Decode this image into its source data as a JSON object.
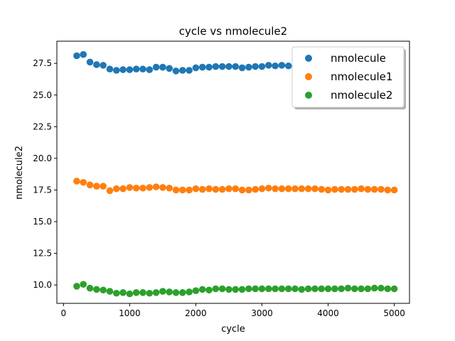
{
  "chart_data": {
    "type": "scatter",
    "title": "cycle vs nmolecule2",
    "xlabel": "cycle",
    "ylabel": "nmolecule2",
    "xlim": [
      -100,
      5230
    ],
    "ylim": [
      8.55,
      29.25
    ],
    "xticks": [
      "0",
      "1000",
      "2000",
      "3000",
      "4000",
      "5000"
    ],
    "xtick_values": [
      0,
      1000,
      2000,
      3000,
      4000,
      5000
    ],
    "yticks": [
      "10.0",
      "12.5",
      "15.0",
      "17.5",
      "20.0",
      "22.5",
      "25.0",
      "27.5"
    ],
    "ytick_values": [
      10.0,
      12.5,
      15.0,
      17.5,
      20.0,
      22.5,
      25.0,
      27.5
    ],
    "grid": false,
    "legend_position": "top-right",
    "x": [
      200,
      300,
      400,
      500,
      600,
      700,
      800,
      900,
      1000,
      1100,
      1200,
      1300,
      1400,
      1500,
      1600,
      1700,
      1800,
      1900,
      2000,
      2100,
      2200,
      2300,
      2400,
      2500,
      2600,
      2700,
      2800,
      2900,
      3000,
      3100,
      3200,
      3300,
      3400,
      3500,
      3600,
      3700,
      3800,
      3900,
      4000,
      4100,
      4200,
      4300,
      4400,
      4500,
      4600,
      4700,
      4800,
      4900,
      5000
    ],
    "series": [
      {
        "name": "nmolecule",
        "color": "#1f77b4",
        "values": [
          28.1,
          28.2,
          27.6,
          27.4,
          27.35,
          27.05,
          26.95,
          27.0,
          27.0,
          27.05,
          27.05,
          27.0,
          27.2,
          27.2,
          27.1,
          26.9,
          26.95,
          26.95,
          27.15,
          27.2,
          27.2,
          27.25,
          27.25,
          27.25,
          27.25,
          27.15,
          27.2,
          27.25,
          27.25,
          27.35,
          27.3,
          27.35,
          27.3,
          27.2,
          27.2,
          27.2,
          27.2,
          27.2,
          27.2,
          27.2,
          27.25,
          27.2,
          27.2,
          27.2,
          27.2,
          27.2,
          27.25,
          27.2,
          27.2
        ]
      },
      {
        "name": "nmolecule1",
        "color": "#ff7f0e",
        "values": [
          18.2,
          18.1,
          17.9,
          17.8,
          17.8,
          17.45,
          17.6,
          17.6,
          17.7,
          17.65,
          17.65,
          17.7,
          17.75,
          17.7,
          17.65,
          17.5,
          17.5,
          17.5,
          17.6,
          17.55,
          17.6,
          17.55,
          17.55,
          17.6,
          17.6,
          17.5,
          17.5,
          17.55,
          17.6,
          17.65,
          17.6,
          17.6,
          17.6,
          17.6,
          17.6,
          17.6,
          17.6,
          17.55,
          17.5,
          17.55,
          17.55,
          17.55,
          17.55,
          17.6,
          17.55,
          17.55,
          17.55,
          17.5,
          17.5
        ]
      },
      {
        "name": "nmolecule2",
        "color": "#2ca02c",
        "values": [
          9.9,
          10.05,
          9.75,
          9.65,
          9.6,
          9.5,
          9.35,
          9.4,
          9.3,
          9.4,
          9.4,
          9.35,
          9.4,
          9.5,
          9.45,
          9.4,
          9.4,
          9.45,
          9.55,
          9.65,
          9.6,
          9.7,
          9.7,
          9.65,
          9.65,
          9.65,
          9.7,
          9.7,
          9.7,
          9.7,
          9.7,
          9.7,
          9.7,
          9.7,
          9.65,
          9.7,
          9.7,
          9.7,
          9.7,
          9.7,
          9.7,
          9.75,
          9.7,
          9.7,
          9.7,
          9.75,
          9.75,
          9.7,
          9.7
        ]
      }
    ]
  }
}
